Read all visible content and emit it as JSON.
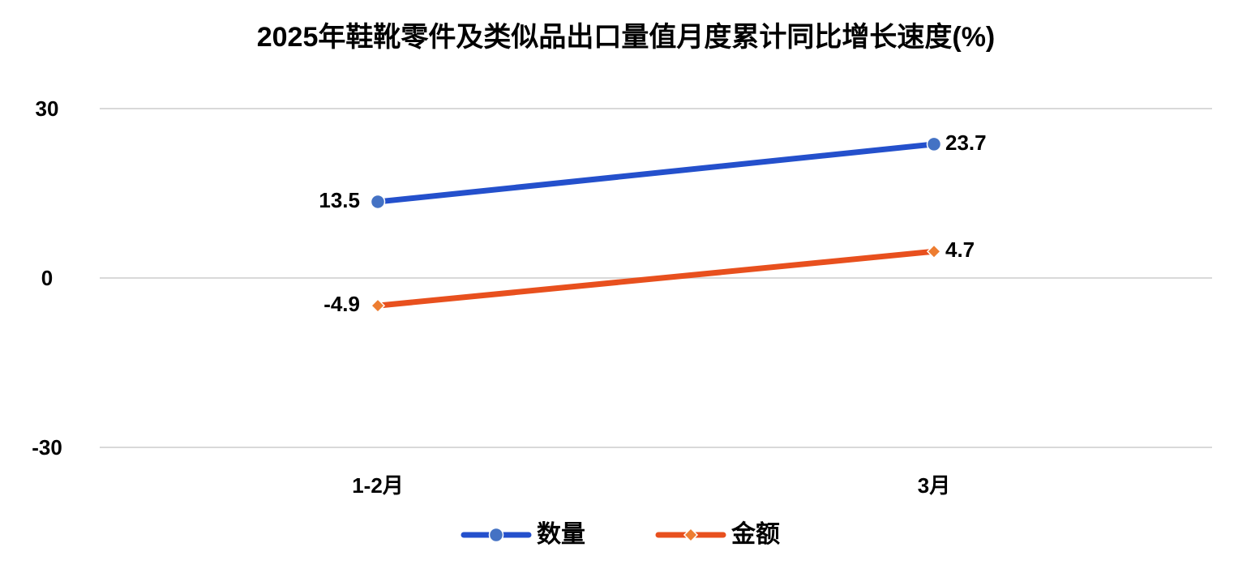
{
  "chart_data": {
    "type": "line",
    "title": "2025年鞋靴零件及类似品出口量值月度累计同比增长速度(%)",
    "categories": [
      "1-2月",
      "3月"
    ],
    "series": [
      {
        "name": "数量",
        "color": "#2450cc",
        "marker_color": "#4472c4",
        "marker": "circle",
        "values": [
          13.5,
          23.7
        ]
      },
      {
        "name": "金额",
        "color": "#e8501e",
        "marker_color": "#ed7d31",
        "marker": "diamond",
        "values": [
          -4.9,
          4.7
        ]
      }
    ],
    "ylim": [
      -30,
      30
    ],
    "yticks": [
      -30,
      0,
      30
    ],
    "grid": true,
    "legend": "bottom"
  }
}
